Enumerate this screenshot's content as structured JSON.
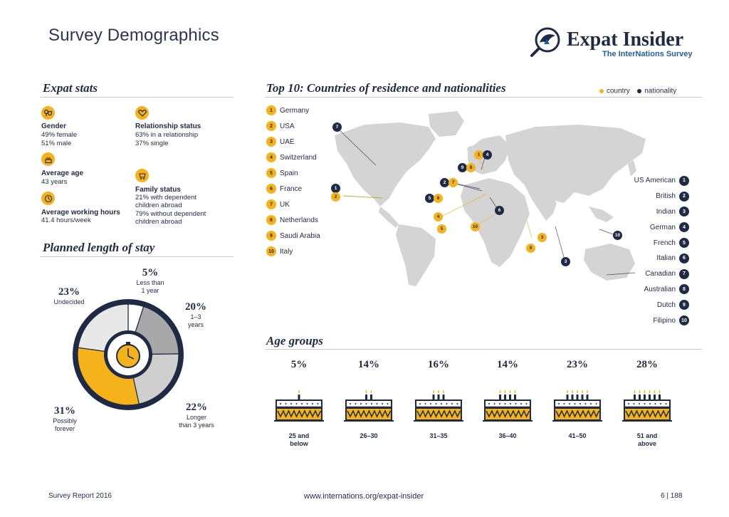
{
  "header": {
    "title": "Survey Demographics",
    "brand_name": "Expat Insider",
    "brand_sub": "The InterNations Survey"
  },
  "expat_stats": {
    "title": "Expat stats",
    "gender": {
      "label": "Gender",
      "lines": [
        "49% female",
        "51% male"
      ],
      "icon": "gender-icon"
    },
    "relationship": {
      "label": "Relationship status",
      "lines": [
        "63% in a relationship",
        "37% single"
      ],
      "icon": "heart-icon"
    },
    "age": {
      "label": "Average age",
      "lines": [
        "43 years"
      ],
      "icon": "birthday-cake-icon"
    },
    "family": {
      "label": "Family status",
      "lines": [
        "21% with dependent",
        "children abroad",
        "79% without dependent",
        "children abroad"
      ],
      "icon": "stroller-icon"
    },
    "working": {
      "label": "Average working hours",
      "lines": [
        "41.4 hours/week"
      ],
      "icon": "clock-icon"
    }
  },
  "stay": {
    "title": "Planned length of stay",
    "colors": {
      "less_than_1": "#ffffff",
      "one_to_three": "#a8a8a8",
      "longer_than_3": "#cfcfcf",
      "forever": "#f5b21b",
      "undecided": "#e8e8e8",
      "ring": "#1f2a44"
    },
    "chart_data": {
      "type": "pie",
      "categories": [
        "Less than 1 year",
        "1–3 years",
        "Longer than 3 years",
        "Possibly forever",
        "Undecided"
      ],
      "values": [
        5,
        20,
        22,
        31,
        23
      ],
      "unit": "%"
    },
    "labels": [
      {
        "pct": "5",
        "sign": "%",
        "text": [
          "Less than",
          "1 year"
        ]
      },
      {
        "pct": "20",
        "sign": "%",
        "text": [
          "1–3",
          "years"
        ]
      },
      {
        "pct": "22",
        "sign": "%",
        "text": [
          "Longer",
          "than 3 years"
        ]
      },
      {
        "pct": "31",
        "sign": "%",
        "text": [
          "Possibly",
          "forever"
        ]
      },
      {
        "pct": "23",
        "sign": "%",
        "text": [
          "Undecided"
        ]
      }
    ]
  },
  "top10": {
    "title": "Top 10: Countries of residence and nationalities",
    "legend": {
      "country": "country",
      "nationality": "nationality",
      "country_color": "#f5b21b",
      "nationality_color": "#1f2a44"
    },
    "countries": [
      {
        "rank": "1",
        "name": "Germany"
      },
      {
        "rank": "2",
        "name": "USA"
      },
      {
        "rank": "3",
        "name": "UAE"
      },
      {
        "rank": "4",
        "name": "Switzerland"
      },
      {
        "rank": "5",
        "name": "Spain"
      },
      {
        "rank": "6",
        "name": "France"
      },
      {
        "rank": "7",
        "name": "UK"
      },
      {
        "rank": "8",
        "name": "Netherlands"
      },
      {
        "rank": "9",
        "name": "Saudi Arabia"
      },
      {
        "rank": "10",
        "name": "Italy"
      }
    ],
    "nationalities": [
      {
        "rank": "1",
        "name": "US American"
      },
      {
        "rank": "2",
        "name": "British"
      },
      {
        "rank": "3",
        "name": "Indian"
      },
      {
        "rank": "4",
        "name": "German"
      },
      {
        "rank": "5",
        "name": "French"
      },
      {
        "rank": "6",
        "name": "Italian"
      },
      {
        "rank": "7",
        "name": "Canadian"
      },
      {
        "rank": "8",
        "name": "Australian"
      },
      {
        "rank": "9",
        "name": "Dutch"
      },
      {
        "rank": "10",
        "name": "Filipino"
      }
    ]
  },
  "age_groups": {
    "title": "Age groups",
    "chart_data": {
      "type": "bar",
      "categories": [
        "25 and below",
        "26–30",
        "31–35",
        "36–40",
        "41–50",
        "51 and above"
      ],
      "values": [
        5,
        14,
        16,
        14,
        23,
        28
      ],
      "unit": "%"
    },
    "items": [
      {
        "pct": "5",
        "sign": "%",
        "label": [
          "25 and",
          "below"
        ],
        "candles": 1
      },
      {
        "pct": "14",
        "sign": "%",
        "label": [
          "26–30"
        ],
        "candles": 2
      },
      {
        "pct": "16",
        "sign": "%",
        "label": [
          "31–35"
        ],
        "candles": 3
      },
      {
        "pct": "14",
        "sign": "%",
        "label": [
          "36–40"
        ],
        "candles": 4
      },
      {
        "pct": "23",
        "sign": "%",
        "label": [
          "41–50"
        ],
        "candles": 5
      },
      {
        "pct": "28",
        "sign": "%",
        "label": [
          "51 and",
          "above"
        ],
        "candles": 6
      }
    ]
  },
  "footer": {
    "left": "Survey Report 2016",
    "center": "www.internations.org/expat-insider",
    "right": "6 | 188"
  }
}
